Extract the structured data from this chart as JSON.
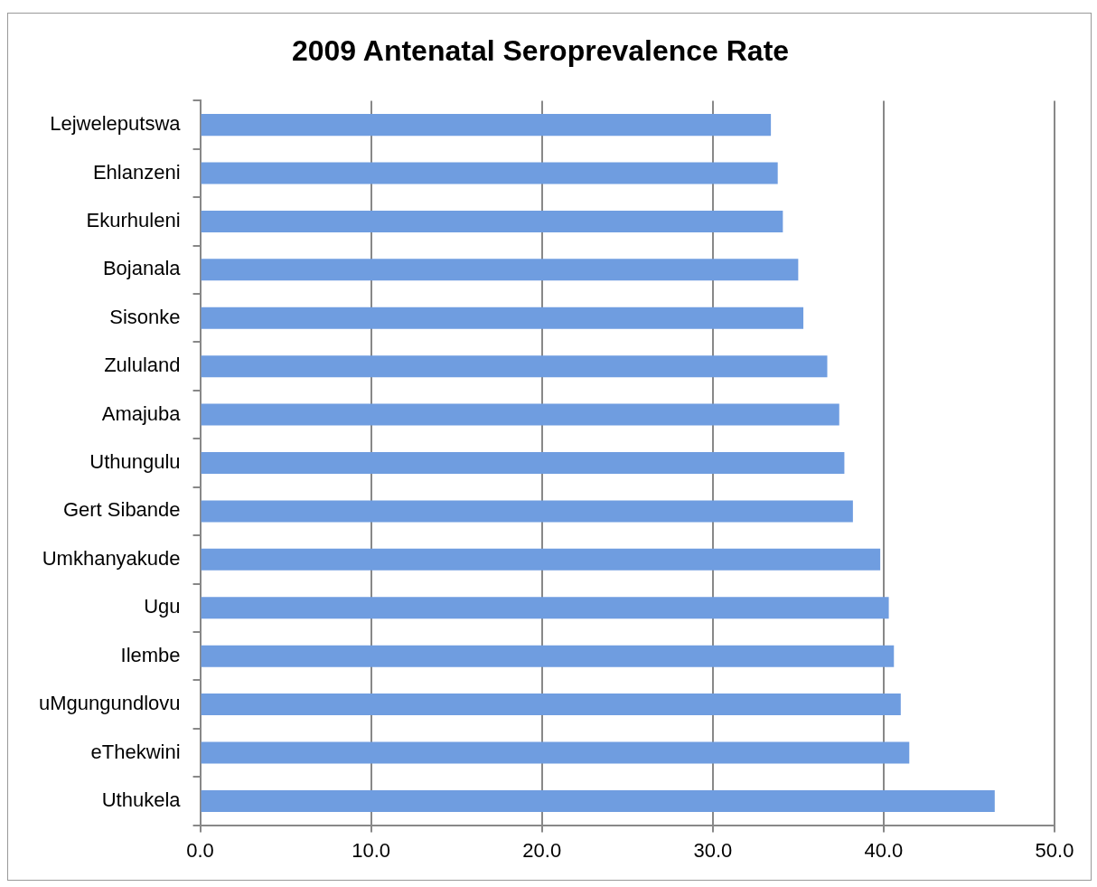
{
  "chart_data": {
    "type": "bar",
    "orientation": "horizontal",
    "title": "2009 Antenatal Seroprevalence Rate",
    "categories": [
      "Lejweleputswa",
      "Ehlanzeni",
      "Ekurhuleni",
      "Bojanala",
      "Sisonke",
      "Zululand",
      "Amajuba",
      "Uthungulu",
      "Gert Sibande",
      "Umkhanyakude",
      "Ugu",
      "Ilembe",
      "uMgungundlovu",
      "eThekwini",
      "Uthukela"
    ],
    "values": [
      33.4,
      33.8,
      34.1,
      35.0,
      35.3,
      36.7,
      37.4,
      37.7,
      38.2,
      39.8,
      40.3,
      40.6,
      41.0,
      41.5,
      46.5
    ],
    "color": "#6f9de0",
    "xlim": [
      0,
      50
    ],
    "xticks": [
      {
        "value": 0,
        "label": "0.0"
      },
      {
        "value": 10,
        "label": "10.0"
      },
      {
        "value": 20,
        "label": "20.0"
      },
      {
        "value": 30,
        "label": "30.0"
      },
      {
        "value": 40,
        "label": "40.0"
      },
      {
        "value": 50,
        "label": "50.0"
      }
    ],
    "grid": "x",
    "legend": false
  }
}
